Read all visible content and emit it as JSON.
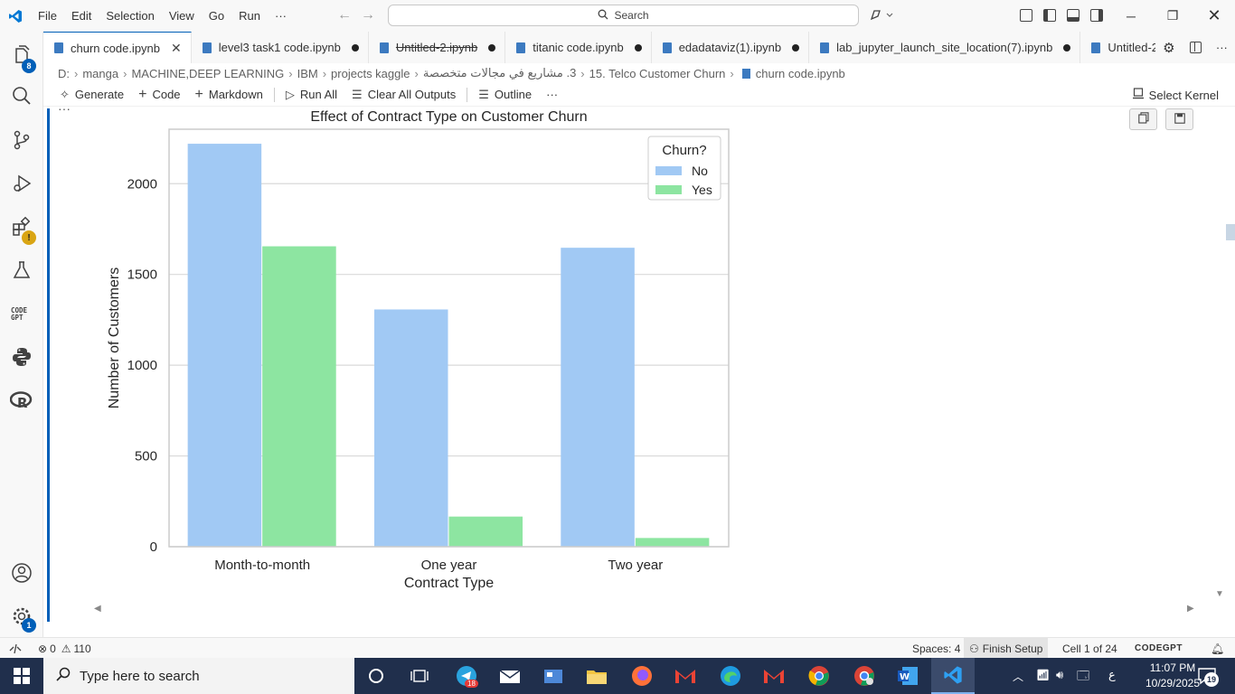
{
  "menu": [
    "File",
    "Edit",
    "Selection",
    "View",
    "Go",
    "Run"
  ],
  "menu_more": "···",
  "search": {
    "label": "Search"
  },
  "tabs": [
    {
      "label": "churn code.ipynb",
      "active": true,
      "state": "close"
    },
    {
      "label": "level3 task1 code.ipynb",
      "state": "dirty"
    },
    {
      "label": "Untitled-2.ipynb",
      "state": "dirty",
      "strikethrough": true
    },
    {
      "label": "titanic code.ipynb",
      "state": "dirty"
    },
    {
      "label": "edadataviz(1).ipynb",
      "state": "dirty"
    },
    {
      "label": "lab_jupyter_launch_site_location(7).ipynb",
      "state": "dirty"
    },
    {
      "label": "Untitled-2",
      "state": "partial"
    }
  ],
  "breadcrumb": [
    "D:",
    "manga",
    "MACHINE,DEEP LEARNING",
    "IBM",
    "projects kaggle",
    "3. مشاريع في مجالات متخصصة",
    "15. Telco Customer Churn",
    "churn code.ipynb"
  ],
  "toolbar": {
    "generate": "Generate",
    "code": "Code",
    "markdown": "Markdown",
    "run_all": "Run All",
    "clear_outputs": "Clear All Outputs",
    "outline": "Outline",
    "more": "···",
    "select_kernel": "Select Kernel"
  },
  "activity": {
    "explorer_badge": "8",
    "settings_badge": "1"
  },
  "cell_more": "···",
  "chart_data": {
    "type": "bar",
    "title": "Effect of Contract Type on Customer Churn",
    "xlabel": "Contract Type",
    "ylabel": "Number of Customers",
    "categories": [
      "Month-to-month",
      "One year",
      "Two year"
    ],
    "series": [
      {
        "name": "No",
        "color": "#a1c9f4",
        "values": [
          2220,
          1307,
          1647
        ]
      },
      {
        "name": "Yes",
        "color": "#8de5a1",
        "values": [
          1655,
          166,
          48
        ]
      }
    ],
    "ylim": [
      0,
      2300
    ],
    "yticks": [
      0,
      500,
      1000,
      1500,
      2000
    ],
    "legend_title": "Churn?",
    "legend_position": "top-right",
    "grid": "y"
  },
  "status": {
    "errors": "0",
    "warnings": "110",
    "spaces": "Spaces: 4",
    "finish_setup": "Finish Setup",
    "cell": "Cell 1 of 24",
    "codegpt": "CODEGPT"
  },
  "taskbar": {
    "search_placeholder": "Type here to search",
    "telegram_badge": "18",
    "time": "11:07 PM",
    "date": "10/29/2025",
    "notifications": "19",
    "lang": "ع"
  }
}
